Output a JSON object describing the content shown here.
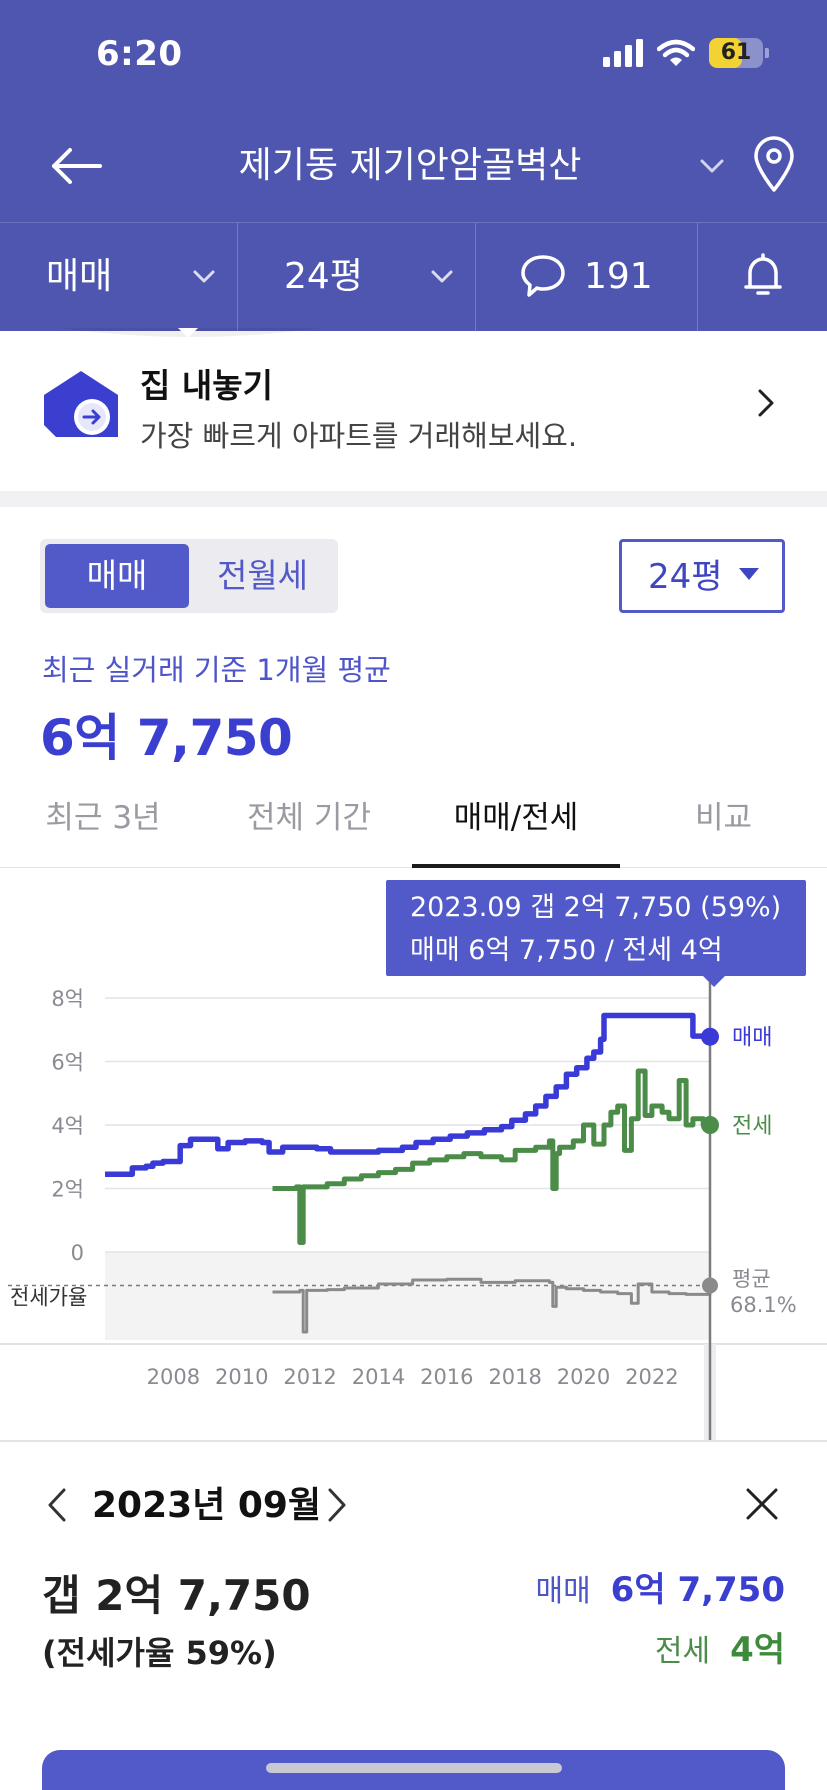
{
  "status_bar": {
    "time": "6:20",
    "battery_level": "61",
    "battery_fraction": 0.61
  },
  "nav": {
    "title": "제기동 제기안암골벽산"
  },
  "filters": {
    "trade_type": "매매",
    "area": "24평",
    "comment_count": "191"
  },
  "promo": {
    "title": "집 내놓기",
    "subtitle": "가장 빠르게 아파트를 거래해보세요."
  },
  "segment": {
    "active": "매매",
    "inactive": "전월세"
  },
  "size_select": {
    "value": "24평"
  },
  "summary": {
    "caption": "최근 실거래 기준 1개월 평균",
    "price": "6억 7,750"
  },
  "tabs": [
    "최근 3년",
    "전체 기간",
    "매매/전세",
    "비교"
  ],
  "active_tab_index": 2,
  "tooltip": {
    "line1": "2023.09  갭 2억 7,750 (59%)",
    "line2": "매매 6억 7,750 / 전세 4억"
  },
  "chart_data": {
    "type": "line",
    "ylim": [
      0,
      8
    ],
    "y_ticks": [
      "8억",
      "6억",
      "4억",
      "2억",
      "0"
    ],
    "x_ticks": [
      "2008",
      "2010",
      "2012",
      "2014",
      "2016",
      "2018",
      "2020",
      "2022"
    ],
    "x_tick_years": [
      2008,
      2010,
      2012,
      2014,
      2016,
      2018,
      2020,
      2022
    ],
    "selected_x": 2023.7,
    "ratio_label": "전세가율",
    "ratio_avg_label": "평균",
    "ratio_avg_value": "68.1%",
    "colors": {
      "sale": "#3a3ad6",
      "jeonse": "#4a8c48",
      "ratio": "#8a8a8a"
    },
    "series": [
      {
        "name": "매매",
        "x": [
          2006.0,
          2006.7,
          2006.8,
          2007.2,
          2007.4,
          2007.7,
          2008.2,
          2008.5,
          2009.0,
          2009.3,
          2009.6,
          2010.1,
          2010.6,
          2010.8,
          2011.2,
          2011.6,
          2012.2,
          2012.6,
          2013.2,
          2014.0,
          2014.7,
          2015.1,
          2015.6,
          2016.1,
          2016.6,
          2017.1,
          2017.6,
          2017.9,
          2018.3,
          2018.6,
          2018.9,
          2019.2,
          2019.5,
          2019.8,
          2020.1,
          2020.3,
          2020.5,
          2020.6,
          2021.0,
          2021.4,
          2022.0,
          2022.5,
          2023.0,
          2023.2,
          2023.4,
          2023.7
        ],
        "values": [
          2.45,
          2.45,
          2.65,
          2.7,
          2.8,
          2.85,
          3.35,
          3.55,
          3.55,
          3.25,
          3.45,
          3.5,
          3.45,
          3.15,
          3.3,
          3.3,
          3.25,
          3.15,
          3.15,
          3.2,
          3.3,
          3.45,
          3.55,
          3.65,
          3.75,
          3.85,
          3.95,
          4.15,
          4.35,
          4.6,
          4.9,
          5.2,
          5.6,
          5.8,
          6.1,
          6.3,
          6.7,
          7.45,
          7.45,
          7.45,
          7.45,
          7.45,
          7.45,
          6.8,
          6.8,
          6.78
        ]
      },
      {
        "name": "전세",
        "x": [
          2010.9,
          2011.6,
          2011.7,
          2011.8,
          2011.9,
          2012.5,
          2013.0,
          2013.5,
          2014.0,
          2014.5,
          2015.0,
          2015.5,
          2016.0,
          2016.5,
          2017.0,
          2017.6,
          2018.0,
          2018.6,
          2019.0,
          2019.1,
          2019.2,
          2019.3,
          2019.7,
          2020.0,
          2020.3,
          2020.6,
          2020.8,
          2021.0,
          2021.2,
          2021.4,
          2021.6,
          2021.8,
          2022.0,
          2022.3,
          2022.5,
          2022.8,
          2023.0,
          2023.2,
          2023.5,
          2023.7
        ],
        "values": [
          2.0,
          2.05,
          0.3,
          2.05,
          2.05,
          2.15,
          2.3,
          2.4,
          2.5,
          2.6,
          2.8,
          2.9,
          3.0,
          3.1,
          3.0,
          2.9,
          3.2,
          3.3,
          3.5,
          2.0,
          3.1,
          3.3,
          3.5,
          4.0,
          3.4,
          4.0,
          4.4,
          4.6,
          3.2,
          4.2,
          5.7,
          4.3,
          4.6,
          4.4,
          4.2,
          5.4,
          4.0,
          4.2,
          4.0,
          4.0
        ]
      },
      {
        "name": "전세가율",
        "x": [
          2010.9,
          2011.7,
          2011.8,
          2011.9,
          2012.5,
          2013.0,
          2014.0,
          2015.0,
          2016.0,
          2017.0,
          2018.0,
          2019.0,
          2019.1,
          2019.2,
          2019.5,
          2020.0,
          2020.5,
          2021.0,
          2021.4,
          2021.6,
          2022.0,
          2022.5,
          2023.0,
          2023.7
        ],
        "values": [
          60,
          62,
          10,
          62,
          63,
          65,
          70,
          75,
          76,
          72,
          74,
          72,
          42,
          66,
          64,
          62,
          60,
          58,
          46,
          70,
          60,
          58,
          57,
          59
        ]
      }
    ],
    "series_labels": {
      "sale": "매매",
      "jeonse": "전세"
    }
  },
  "detail": {
    "month": "2023년 09월",
    "gap": "갭 2억 7,750",
    "ratio": "(전세가율 59%)",
    "sale_label": "매매",
    "sale_value": "6억 7,750",
    "jeonse_label": "전세",
    "jeonse_value": "4억"
  }
}
